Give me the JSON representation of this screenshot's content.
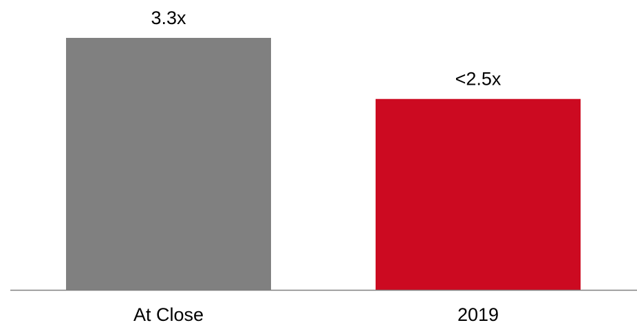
{
  "chart_data": {
    "type": "bar",
    "categories": [
      "At Close",
      "2019"
    ],
    "values": [
      3.3,
      2.5
    ],
    "data_labels": [
      "3.3x",
      "<2.5x"
    ],
    "bar_colors": [
      "#808080",
      "#CC0A21"
    ],
    "axis_color": "#808080",
    "ylim": [
      0,
      3.3
    ],
    "grid": false,
    "legend": "none",
    "title": "",
    "xlabel": "",
    "ylabel": ""
  }
}
